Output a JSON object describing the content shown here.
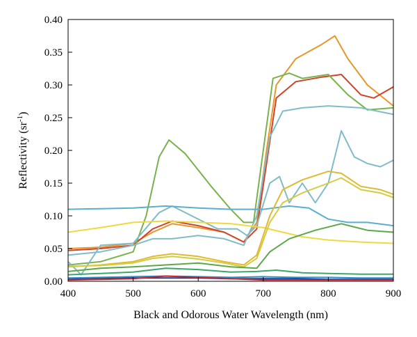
{
  "chart_data": {
    "type": "line",
    "title": "",
    "xlabel": "Black and Odorous Water Wavelength (nm)",
    "ylabel": "Reflectivity (sr",
    "ylabel_sup": "-1",
    "ylabel_tail": ")",
    "xlim": [
      400,
      900
    ],
    "ylim": [
      0,
      0.4
    ],
    "xticks": [
      400,
      500,
      600,
      700,
      800,
      900
    ],
    "yticks": [
      0.0,
      0.05,
      0.1,
      0.15,
      0.2,
      0.25,
      0.3,
      0.35,
      0.4
    ],
    "xtick_labels": [
      "400",
      "500",
      "600",
      "700",
      "800",
      "900"
    ],
    "ytick_labels": [
      "0.00",
      "0.05",
      "0.10",
      "0.15",
      "0.20",
      "0.25",
      "0.30",
      "0.35",
      "0.40"
    ],
    "grid": false,
    "legend": "none",
    "series": [
      {
        "color": "#e8962a",
        "points": [
          [
            400,
            0.05
          ],
          [
            450,
            0.052
          ],
          [
            500,
            0.058
          ],
          [
            530,
            0.075
          ],
          [
            560,
            0.088
          ],
          [
            600,
            0.082
          ],
          [
            640,
            0.075
          ],
          [
            670,
            0.06
          ],
          [
            690,
            0.09
          ],
          [
            705,
            0.2
          ],
          [
            720,
            0.3
          ],
          [
            750,
            0.34
          ],
          [
            790,
            0.362
          ],
          [
            810,
            0.375
          ],
          [
            830,
            0.34
          ],
          [
            860,
            0.3
          ],
          [
            900,
            0.268
          ]
        ]
      },
      {
        "color": "#d0432a",
        "points": [
          [
            400,
            0.047
          ],
          [
            450,
            0.05
          ],
          [
            500,
            0.055
          ],
          [
            530,
            0.08
          ],
          [
            560,
            0.092
          ],
          [
            600,
            0.085
          ],
          [
            640,
            0.075
          ],
          [
            670,
            0.06
          ],
          [
            690,
            0.08
          ],
          [
            705,
            0.18
          ],
          [
            720,
            0.28
          ],
          [
            750,
            0.305
          ],
          [
            790,
            0.312
          ],
          [
            820,
            0.316
          ],
          [
            850,
            0.285
          ],
          [
            870,
            0.28
          ],
          [
            900,
            0.297
          ]
        ]
      },
      {
        "color": "#78b24a",
        "points": [
          [
            400,
            0.025
          ],
          [
            450,
            0.03
          ],
          [
            500,
            0.045
          ],
          [
            520,
            0.1
          ],
          [
            540,
            0.19
          ],
          [
            555,
            0.216
          ],
          [
            580,
            0.195
          ],
          [
            620,
            0.145
          ],
          [
            650,
            0.11
          ],
          [
            670,
            0.09
          ],
          [
            685,
            0.09
          ],
          [
            700,
            0.2
          ],
          [
            715,
            0.31
          ],
          [
            740,
            0.318
          ],
          [
            760,
            0.31
          ],
          [
            800,
            0.316
          ],
          [
            830,
            0.285
          ],
          [
            860,
            0.262
          ],
          [
            900,
            0.265
          ]
        ]
      },
      {
        "color": "#7fbcc8",
        "points": [
          [
            400,
            0.04
          ],
          [
            450,
            0.045
          ],
          [
            500,
            0.055
          ],
          [
            530,
            0.065
          ],
          [
            560,
            0.065
          ],
          [
            600,
            0.07
          ],
          [
            640,
            0.065
          ],
          [
            670,
            0.055
          ],
          [
            690,
            0.1
          ],
          [
            710,
            0.22
          ],
          [
            730,
            0.26
          ],
          [
            760,
            0.265
          ],
          [
            800,
            0.268
          ],
          [
            850,
            0.265
          ],
          [
            900,
            0.255
          ]
        ]
      },
      {
        "color": "#7fbcc8",
        "points": [
          [
            400,
            0.03
          ],
          [
            420,
            0.01
          ],
          [
            450,
            0.055
          ],
          [
            500,
            0.058
          ],
          [
            540,
            0.105
          ],
          [
            560,
            0.115
          ],
          [
            590,
            0.1
          ],
          [
            630,
            0.08
          ],
          [
            660,
            0.08
          ],
          [
            675,
            0.07
          ],
          [
            690,
            0.085
          ],
          [
            710,
            0.15
          ],
          [
            725,
            0.16
          ],
          [
            740,
            0.12
          ],
          [
            760,
            0.15
          ],
          [
            780,
            0.12
          ],
          [
            800,
            0.15
          ],
          [
            820,
            0.23
          ],
          [
            840,
            0.19
          ],
          [
            860,
            0.18
          ],
          [
            880,
            0.175
          ],
          [
            900,
            0.185
          ]
        ]
      },
      {
        "color": "#5aaed0",
        "points": [
          [
            400,
            0.11
          ],
          [
            450,
            0.111
          ],
          [
            500,
            0.112
          ],
          [
            550,
            0.115
          ],
          [
            600,
            0.112
          ],
          [
            650,
            0.11
          ],
          [
            700,
            0.11
          ],
          [
            740,
            0.115
          ],
          [
            770,
            0.112
          ],
          [
            800,
            0.095
          ],
          [
            830,
            0.09
          ],
          [
            860,
            0.09
          ],
          [
            900,
            0.085
          ]
        ]
      },
      {
        "color": "#f0d840",
        "points": [
          [
            400,
            0.075
          ],
          [
            450,
            0.082
          ],
          [
            500,
            0.09
          ],
          [
            550,
            0.092
          ],
          [
            600,
            0.09
          ],
          [
            650,
            0.088
          ],
          [
            700,
            0.082
          ],
          [
            730,
            0.075
          ],
          [
            760,
            0.068
          ],
          [
            800,
            0.063
          ],
          [
            850,
            0.06
          ],
          [
            900,
            0.058
          ]
        ]
      },
      {
        "color": "#e0b92e",
        "points": [
          [
            400,
            0.022
          ],
          [
            450,
            0.025
          ],
          [
            500,
            0.03
          ],
          [
            530,
            0.038
          ],
          [
            560,
            0.042
          ],
          [
            600,
            0.038
          ],
          [
            640,
            0.03
          ],
          [
            670,
            0.025
          ],
          [
            690,
            0.04
          ],
          [
            710,
            0.1
          ],
          [
            730,
            0.14
          ],
          [
            760,
            0.155
          ],
          [
            800,
            0.168
          ],
          [
            820,
            0.165
          ],
          [
            850,
            0.145
          ],
          [
            880,
            0.14
          ],
          [
            900,
            0.133
          ]
        ]
      },
      {
        "color": "#d4cc40",
        "points": [
          [
            400,
            0.023
          ],
          [
            450,
            0.024
          ],
          [
            500,
            0.028
          ],
          [
            530,
            0.035
          ],
          [
            560,
            0.038
          ],
          [
            600,
            0.034
          ],
          [
            640,
            0.028
          ],
          [
            670,
            0.022
          ],
          [
            690,
            0.035
          ],
          [
            710,
            0.09
          ],
          [
            730,
            0.12
          ],
          [
            760,
            0.135
          ],
          [
            800,
            0.15
          ],
          [
            820,
            0.158
          ],
          [
            850,
            0.14
          ],
          [
            880,
            0.135
          ],
          [
            900,
            0.128
          ]
        ]
      },
      {
        "color": "#5aa848",
        "points": [
          [
            400,
            0.015
          ],
          [
            450,
            0.02
          ],
          [
            500,
            0.022
          ],
          [
            550,
            0.025
          ],
          [
            600,
            0.028
          ],
          [
            650,
            0.022
          ],
          [
            690,
            0.02
          ],
          [
            710,
            0.045
          ],
          [
            740,
            0.065
          ],
          [
            780,
            0.078
          ],
          [
            820,
            0.088
          ],
          [
            860,
            0.078
          ],
          [
            900,
            0.075
          ]
        ]
      },
      {
        "color": "#3aa66a",
        "points": [
          [
            400,
            0.01
          ],
          [
            450,
            0.012
          ],
          [
            500,
            0.014
          ],
          [
            550,
            0.02
          ],
          [
            600,
            0.018
          ],
          [
            650,
            0.014
          ],
          [
            690,
            0.015
          ],
          [
            720,
            0.017
          ],
          [
            760,
            0.013
          ],
          [
            800,
            0.012
          ],
          [
            850,
            0.011
          ],
          [
            900,
            0.011
          ]
        ]
      },
      {
        "color": "#2a8fc8",
        "points": [
          [
            400,
            0.005
          ],
          [
            450,
            0.006
          ],
          [
            500,
            0.007
          ],
          [
            550,
            0.008
          ],
          [
            600,
            0.007
          ],
          [
            650,
            0.006
          ],
          [
            700,
            0.007
          ],
          [
            750,
            0.006
          ],
          [
            800,
            0.006
          ],
          [
            850,
            0.005
          ],
          [
            900,
            0.005
          ]
        ]
      },
      {
        "color": "#1f3f8f",
        "points": [
          [
            400,
            0.003
          ],
          [
            450,
            0.004
          ],
          [
            500,
            0.005
          ],
          [
            550,
            0.005
          ],
          [
            600,
            0.005
          ],
          [
            650,
            0.004
          ],
          [
            700,
            0.004
          ],
          [
            750,
            0.004
          ],
          [
            800,
            0.003
          ],
          [
            850,
            0.003
          ],
          [
            900,
            0.003
          ]
        ]
      },
      {
        "color": "#c8282a",
        "points": [
          [
            400,
            0.002
          ],
          [
            450,
            0.003
          ],
          [
            500,
            0.004
          ],
          [
            550,
            0.008
          ],
          [
            600,
            0.006
          ],
          [
            650,
            0.004
          ],
          [
            700,
            0.002
          ],
          [
            750,
            0.002
          ],
          [
            800,
            0.002
          ],
          [
            850,
            0.002
          ],
          [
            900,
            0.002
          ]
        ]
      }
    ]
  }
}
